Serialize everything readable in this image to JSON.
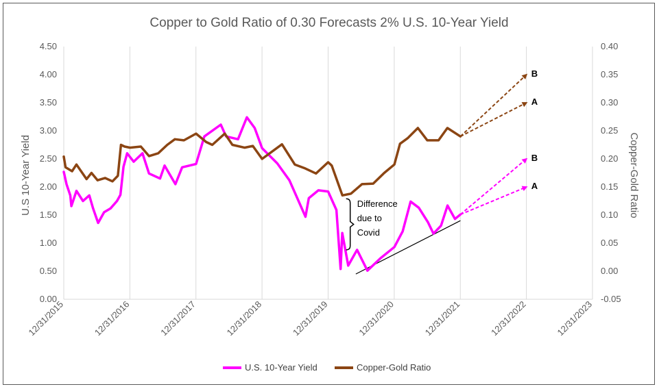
{
  "chart_data": {
    "type": "line",
    "title": "Copper to Gold Ratio of 0.30 Forecasts 2% U.S. 10-Year Yield",
    "y_left_label": "U.S 10-Year Yield",
    "y_right_label": "Copper-Gold Ratio",
    "y_left_lim": [
      0,
      4.5
    ],
    "y_right_lim": [
      -0.05,
      0.4
    ],
    "y_left_ticks": [
      "0.00",
      "0.50",
      "1.00",
      "1.50",
      "2.00",
      "2.50",
      "3.00",
      "3.50",
      "4.00",
      "4.50"
    ],
    "y_right_ticks": [
      "-0.05",
      "0.00",
      "0.05",
      "0.10",
      "0.15",
      "0.20",
      "0.25",
      "0.30",
      "0.35",
      "0.40"
    ],
    "x_ticks": [
      "12/31/2015",
      "12/31/2016",
      "12/31/2017",
      "12/31/2018",
      "12/31/2019",
      "12/31/2020",
      "12/31/2021",
      "12/31/2022",
      "12/31/2023"
    ],
    "grid": "vertical",
    "legend_position": "bottom",
    "series": [
      {
        "name": "U.S. 10-Year Yield",
        "axis": "left",
        "color": "#ff00ff",
        "points": [
          [
            "2015-12-31",
            2.27
          ],
          [
            "2016-01-15",
            2.05
          ],
          [
            "2016-02-05",
            1.85
          ],
          [
            "2016-02-11",
            1.66
          ],
          [
            "2016-03-10",
            1.93
          ],
          [
            "2016-04-15",
            1.75
          ],
          [
            "2016-05-20",
            1.85
          ],
          [
            "2016-06-10",
            1.62
          ],
          [
            "2016-07-08",
            1.36
          ],
          [
            "2016-08-10",
            1.55
          ],
          [
            "2016-09-15",
            1.62
          ],
          [
            "2016-10-20",
            1.75
          ],
          [
            "2016-11-08",
            1.86
          ],
          [
            "2016-11-25",
            2.36
          ],
          [
            "2016-12-15",
            2.6
          ],
          [
            "2017-01-20",
            2.45
          ],
          [
            "2017-03-10",
            2.6
          ],
          [
            "2017-04-15",
            2.24
          ],
          [
            "2017-06-15",
            2.15
          ],
          [
            "2017-07-10",
            2.38
          ],
          [
            "2017-09-08",
            2.05
          ],
          [
            "2017-10-15",
            2.35
          ],
          [
            "2017-12-31",
            2.41
          ],
          [
            "2018-02-15",
            2.9
          ],
          [
            "2018-05-17",
            3.11
          ],
          [
            "2018-06-15",
            2.9
          ],
          [
            "2018-08-20",
            2.85
          ],
          [
            "2018-10-08",
            3.24
          ],
          [
            "2018-11-20",
            3.05
          ],
          [
            "2018-12-31",
            2.69
          ],
          [
            "2019-03-25",
            2.42
          ],
          [
            "2019-05-31",
            2.12
          ],
          [
            "2019-08-28",
            1.47
          ],
          [
            "2019-09-15",
            1.8
          ],
          [
            "2019-11-07",
            1.94
          ],
          [
            "2019-12-31",
            1.92
          ],
          [
            "2020-02-15",
            1.59
          ],
          [
            "2020-03-09",
            0.54
          ],
          [
            "2020-03-18",
            1.18
          ],
          [
            "2020-04-20",
            0.6
          ],
          [
            "2020-06-08",
            0.88
          ],
          [
            "2020-08-04",
            0.51
          ],
          [
            "2020-10-15",
            0.73
          ],
          [
            "2020-12-31",
            0.93
          ],
          [
            "2021-02-15",
            1.21
          ],
          [
            "2021-03-31",
            1.74
          ],
          [
            "2021-05-15",
            1.63
          ],
          [
            "2021-07-05",
            1.37
          ],
          [
            "2021-08-04",
            1.17
          ],
          [
            "2021-09-15",
            1.31
          ],
          [
            "2021-10-21",
            1.67
          ],
          [
            "2021-12-01",
            1.43
          ],
          [
            "2021-12-31",
            1.51
          ]
        ]
      },
      {
        "name": "Copper-Gold Ratio",
        "axis": "right",
        "color": "#8b4513",
        "points": [
          [
            "2015-12-31",
            0.204
          ],
          [
            "2016-01-10",
            0.185
          ],
          [
            "2016-02-15",
            0.178
          ],
          [
            "2016-03-10",
            0.19
          ],
          [
            "2016-05-05",
            0.164
          ],
          [
            "2016-06-01",
            0.175
          ],
          [
            "2016-07-05",
            0.162
          ],
          [
            "2016-08-15",
            0.166
          ],
          [
            "2016-09-25",
            0.16
          ],
          [
            "2016-10-25",
            0.17
          ],
          [
            "2016-11-11",
            0.225
          ],
          [
            "2016-12-01",
            0.222
          ],
          [
            "2016-12-31",
            0.22
          ],
          [
            "2017-03-01",
            0.222
          ],
          [
            "2017-04-15",
            0.205
          ],
          [
            "2017-06-05",
            0.21
          ],
          [
            "2017-07-25",
            0.225
          ],
          [
            "2017-09-05",
            0.235
          ],
          [
            "2017-10-25",
            0.233
          ],
          [
            "2017-12-31",
            0.245
          ],
          [
            "2018-02-25",
            0.23
          ],
          [
            "2018-03-31",
            0.225
          ],
          [
            "2018-06-08",
            0.245
          ],
          [
            "2018-07-20",
            0.225
          ],
          [
            "2018-09-25",
            0.22
          ],
          [
            "2018-11-10",
            0.223
          ],
          [
            "2018-12-31",
            0.2
          ],
          [
            "2019-04-20",
            0.226
          ],
          [
            "2019-06-30",
            0.19
          ],
          [
            "2019-08-26",
            0.183
          ],
          [
            "2019-10-25",
            0.174
          ],
          [
            "2019-12-31",
            0.194
          ],
          [
            "2020-01-20",
            0.188
          ],
          [
            "2020-03-19",
            0.135
          ],
          [
            "2020-05-05",
            0.138
          ],
          [
            "2020-07-05",
            0.155
          ],
          [
            "2020-09-05",
            0.156
          ],
          [
            "2020-11-05",
            0.175
          ],
          [
            "2020-12-31",
            0.19
          ],
          [
            "2021-01-31",
            0.227
          ],
          [
            "2021-03-15",
            0.237
          ],
          [
            "2021-05-10",
            0.255
          ],
          [
            "2021-07-01",
            0.233
          ],
          [
            "2021-09-01",
            0.233
          ],
          [
            "2021-10-20",
            0.255
          ],
          [
            "2021-12-31",
            0.24
          ]
        ]
      }
    ],
    "forecasts": [
      {
        "label": "B",
        "series": "Copper-Gold Ratio",
        "axis": "right",
        "color": "#8b4513",
        "from": [
          "2021-12-31",
          0.24
        ],
        "to": [
          "2022-12-31",
          0.35
        ]
      },
      {
        "label": "A",
        "series": "Copper-Gold Ratio",
        "axis": "right",
        "color": "#8b4513",
        "from": [
          "2021-12-31",
          0.24
        ],
        "to": [
          "2022-12-31",
          0.3
        ]
      },
      {
        "label": "B",
        "series": "U.S. 10-Year Yield",
        "axis": "left",
        "color": "#ff00ff",
        "from": [
          "2021-12-31",
          1.51
        ],
        "to": [
          "2022-12-31",
          2.5
        ]
      },
      {
        "label": "A",
        "series": "U.S. 10-Year Yield",
        "axis": "left",
        "color": "#ff00ff",
        "from": [
          "2021-12-31",
          1.51
        ],
        "to": [
          "2022-12-31",
          2.0
        ]
      }
    ],
    "trendline": {
      "axis": "left",
      "color": "#000000",
      "from": [
        "2020-06-01",
        0.45
      ],
      "to": [
        "2021-12-31",
        1.4
      ]
    },
    "annotations": [
      {
        "text_lines": [
          "Difference",
          "due to",
          "Covid"
        ],
        "bracket_axis": "left",
        "bracket_date": "2020-05-01",
        "bracket_from": 0.88,
        "bracket_to": 1.79
      }
    ]
  }
}
